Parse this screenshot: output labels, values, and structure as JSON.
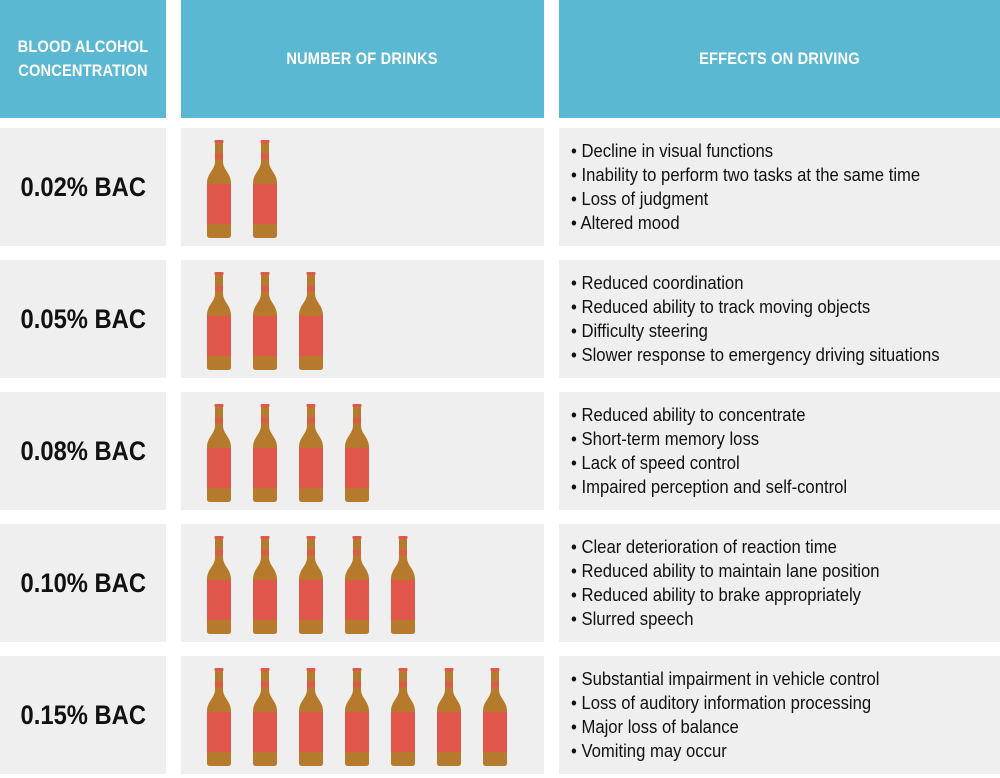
{
  "headers": {
    "bac": "BLOOD ALCOHOL CONCENTRATION",
    "drinks": "NUMBER OF DRINKS",
    "effects": "EFFECTS ON DRIVING"
  },
  "colors": {
    "header_bg": "#5bb8d2",
    "row_bg": "#efefef",
    "bottle_brown": "#b57a2c",
    "bottle_label": "#e2574c"
  },
  "rows": [
    {
      "bac": "0.02% BAC",
      "drinks": 2,
      "effects": [
        "Decline in visual functions",
        "Inability to perform two tasks at the same time",
        "Loss of judgment",
        "Altered mood"
      ]
    },
    {
      "bac": "0.05% BAC",
      "drinks": 3,
      "effects": [
        "Reduced coordination",
        "Reduced ability to track moving objects",
        "Difficulty steering",
        "Slower response to emergency driving situations"
      ]
    },
    {
      "bac": "0.08% BAC",
      "drinks": 4,
      "effects": [
        "Reduced ability to concentrate",
        "Short-term memory loss",
        "Lack of speed control",
        "Impaired perception and self-control"
      ]
    },
    {
      "bac": "0.10% BAC",
      "drinks": 5,
      "effects": [
        "Clear deterioration of reaction time",
        "Reduced ability to maintain lane position",
        "Reduced ability to brake appropriately",
        "Slurred speech"
      ]
    },
    {
      "bac": "0.15% BAC",
      "drinks": 7,
      "effects": [
        "Substantial impairment in vehicle control",
        "Loss of auditory information processing",
        "Major loss of balance",
        "Vomiting may occur"
      ]
    }
  ]
}
